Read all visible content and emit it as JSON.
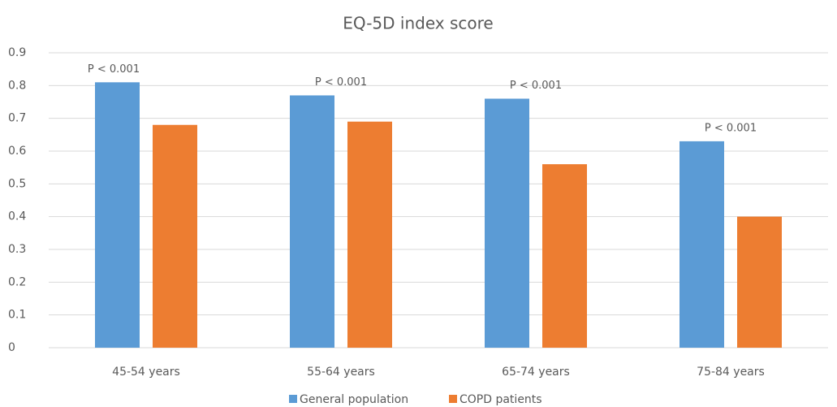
{
  "chart_data": {
    "type": "bar",
    "title": "EQ-5D index score",
    "categories": [
      "45-54 years",
      "55-64 years",
      "65-74 years",
      "75-84 years"
    ],
    "series": [
      {
        "name": "General population",
        "color": "#5b9bd5",
        "values": [
          0.81,
          0.77,
          0.76,
          0.63
        ]
      },
      {
        "name": "COPD patients",
        "color": "#ed7d31",
        "values": [
          0.68,
          0.69,
          0.56,
          0.4
        ]
      }
    ],
    "annotations": [
      "P < 0.001",
      "P < 0.001",
      "P < 0.001",
      "P < 0.001"
    ],
    "ylim": [
      0,
      0.9
    ],
    "yticks": [
      0,
      0.1,
      0.2,
      0.3,
      0.4,
      0.5,
      0.6,
      0.7,
      0.8,
      0.9
    ],
    "grid": true,
    "legend": "bottom"
  }
}
